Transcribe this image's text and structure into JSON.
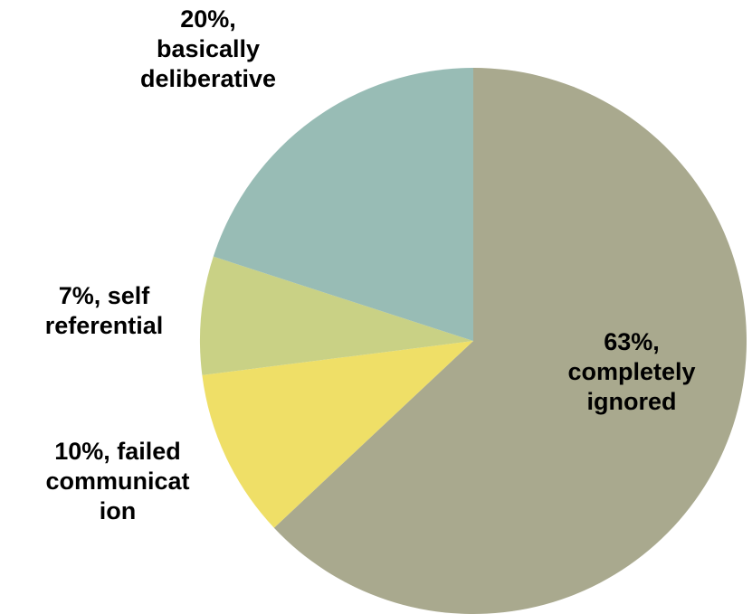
{
  "chart_data": {
    "type": "pie",
    "title": "",
    "slices": [
      {
        "value": 63,
        "label_lines": [
          "63%,",
          "completely",
          "ignored"
        ],
        "color": "#a9a98e"
      },
      {
        "value": 10,
        "label_lines": [
          "10%, failed",
          "communicat",
          "ion"
        ],
        "color": "#efdf67"
      },
      {
        "value": 7,
        "label_lines": [
          "7%, self",
          "referential"
        ],
        "color": "#c9d185"
      },
      {
        "value": 20,
        "label_lines": [
          "20%,",
          "basically",
          "deliberative"
        ],
        "color": "#98bcb5"
      }
    ],
    "start_direction": "12 o'clock",
    "order": "clockwise",
    "legend": "none"
  }
}
